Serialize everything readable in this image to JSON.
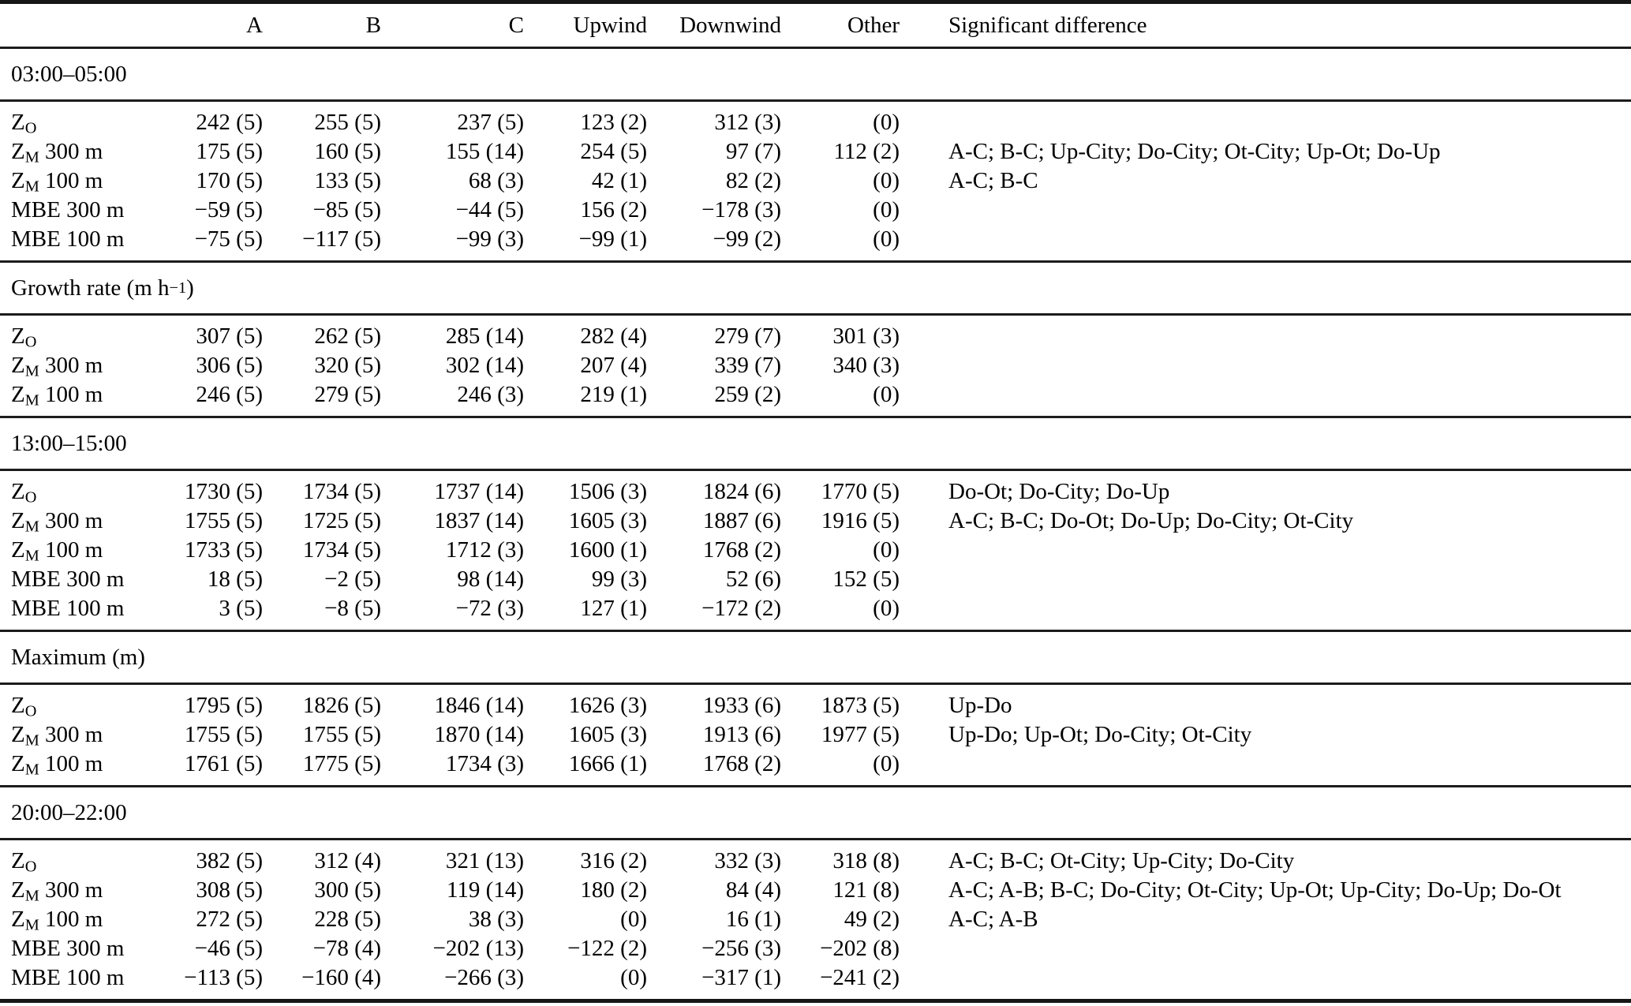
{
  "table": {
    "columns": [
      "",
      "A",
      "B",
      "C",
      "Upwind",
      "Downwind",
      "Other",
      "Significant difference"
    ],
    "sections": [
      {
        "header": {
          "text": "03:00–05:00",
          "sup": "",
          "after": ""
        },
        "rows": [
          {
            "label": {
              "base": "Z",
              "sub": "O",
              "rest": ""
            },
            "values": [
              "242 (5)",
              "255 (5)",
              "237 (5)",
              "123 (2)",
              "312 (3)",
              "(0)"
            ],
            "sig": ""
          },
          {
            "label": {
              "base": "Z",
              "sub": "M",
              "rest": " 300 m"
            },
            "values": [
              "175 (5)",
              "160 (5)",
              "155 (14)",
              "254 (5)",
              "97 (7)",
              "112 (2)"
            ],
            "sig": "A-C; B-C; Up-City; Do-City; Ot-City; Up-Ot; Do-Up"
          },
          {
            "label": {
              "base": "Z",
              "sub": "M",
              "rest": " 100 m"
            },
            "values": [
              "170 (5)",
              "133 (5)",
              "68 (3)",
              "42 (1)",
              "82 (2)",
              "(0)"
            ],
            "sig": "A-C; B-C"
          },
          {
            "label": {
              "base": "MBE",
              "sub": "",
              "rest": " 300 m"
            },
            "values": [
              "−59 (5)",
              "−85 (5)",
              "−44 (5)",
              "156 (2)",
              "−178 (3)",
              "(0)"
            ],
            "sig": ""
          },
          {
            "label": {
              "base": "MBE",
              "sub": "",
              "rest": " 100 m"
            },
            "values": [
              "−75 (5)",
              "−117 (5)",
              "−99 (3)",
              "−99 (1)",
              "−99 (2)",
              "(0)"
            ],
            "sig": ""
          }
        ]
      },
      {
        "header": {
          "text": "Growth rate (m h",
          "sup": "−1",
          "after": ")"
        },
        "rows": [
          {
            "label": {
              "base": "Z",
              "sub": "O",
              "rest": ""
            },
            "values": [
              "307 (5)",
              "262 (5)",
              "285 (14)",
              "282 (4)",
              "279 (7)",
              "301 (3)"
            ],
            "sig": ""
          },
          {
            "label": {
              "base": "Z",
              "sub": "M",
              "rest": " 300 m"
            },
            "values": [
              "306 (5)",
              "320 (5)",
              "302 (14)",
              "207 (4)",
              "339 (7)",
              "340 (3)"
            ],
            "sig": ""
          },
          {
            "label": {
              "base": "Z",
              "sub": "M",
              "rest": " 100 m"
            },
            "values": [
              "246 (5)",
              "279 (5)",
              "246 (3)",
              "219 (1)",
              "259 (2)",
              "(0)"
            ],
            "sig": ""
          }
        ]
      },
      {
        "header": {
          "text": "13:00–15:00",
          "sup": "",
          "after": ""
        },
        "rows": [
          {
            "label": {
              "base": "Z",
              "sub": "O",
              "rest": ""
            },
            "values": [
              "1730 (5)",
              "1734 (5)",
              "1737 (14)",
              "1506 (3)",
              "1824 (6)",
              "1770 (5)"
            ],
            "sig": "Do-Ot; Do-City; Do-Up"
          },
          {
            "label": {
              "base": "Z",
              "sub": "M",
              "rest": " 300 m"
            },
            "values": [
              "1755 (5)",
              "1725 (5)",
              "1837 (14)",
              "1605 (3)",
              "1887 (6)",
              "1916 (5)"
            ],
            "sig": "A-C; B-C; Do-Ot; Do-Up; Do-City; Ot-City"
          },
          {
            "label": {
              "base": "Z",
              "sub": "M",
              "rest": " 100 m"
            },
            "values": [
              "1733 (5)",
              "1734 (5)",
              "1712 (3)",
              "1600 (1)",
              "1768 (2)",
              "(0)"
            ],
            "sig": ""
          },
          {
            "label": {
              "base": "MBE",
              "sub": "",
              "rest": " 300 m"
            },
            "values": [
              "18 (5)",
              "−2 (5)",
              "98 (14)",
              "99 (3)",
              "52 (6)",
              "152 (5)"
            ],
            "sig": ""
          },
          {
            "label": {
              "base": "MBE",
              "sub": "",
              "rest": " 100 m"
            },
            "values": [
              "3 (5)",
              "−8 (5)",
              "−72 (3)",
              "127 (1)",
              "−172 (2)",
              "(0)"
            ],
            "sig": ""
          }
        ]
      },
      {
        "header": {
          "text": "Maximum (m)",
          "sup": "",
          "after": ""
        },
        "rows": [
          {
            "label": {
              "base": "Z",
              "sub": "O",
              "rest": ""
            },
            "values": [
              "1795 (5)",
              "1826 (5)",
              "1846 (14)",
              "1626 (3)",
              "1933 (6)",
              "1873 (5)"
            ],
            "sig": "Up-Do"
          },
          {
            "label": {
              "base": "Z",
              "sub": "M",
              "rest": " 300 m"
            },
            "values": [
              "1755 (5)",
              "1755 (5)",
              "1870 (14)",
              "1605 (3)",
              "1913 (6)",
              "1977 (5)"
            ],
            "sig": "Up-Do; Up-Ot; Do-City; Ot-City"
          },
          {
            "label": {
              "base": "Z",
              "sub": "M",
              "rest": " 100 m"
            },
            "values": [
              "1761 (5)",
              "1775 (5)",
              "1734 (3)",
              "1666 (1)",
              "1768 (2)",
              "(0)"
            ],
            "sig": ""
          }
        ]
      },
      {
        "header": {
          "text": "20:00–22:00",
          "sup": "",
          "after": ""
        },
        "rows": [
          {
            "label": {
              "base": "Z",
              "sub": "O",
              "rest": ""
            },
            "values": [
              "382 (5)",
              "312 (4)",
              "321 (13)",
              "316 (2)",
              "332 (3)",
              "318 (8)"
            ],
            "sig": "A-C; B-C; Ot-City; Up-City; Do-City"
          },
          {
            "label": {
              "base": "Z",
              "sub": "M",
              "rest": " 300 m"
            },
            "values": [
              "308 (5)",
              "300 (5)",
              "119 (14)",
              "180 (2)",
              "84 (4)",
              "121 (8)"
            ],
            "sig": "A-C; A-B; B-C; Do-City; Ot-City; Up-Ot; Up-City; Do-Up; Do-Ot"
          },
          {
            "label": {
              "base": "Z",
              "sub": "M",
              "rest": " 100 m"
            },
            "values": [
              "272 (5)",
              "228 (5)",
              "38 (3)",
              "(0)",
              "16 (1)",
              "49 (2)"
            ],
            "sig": "A-C; A-B"
          },
          {
            "label": {
              "base": "MBE",
              "sub": "",
              "rest": " 300 m"
            },
            "values": [
              "−46 (5)",
              "−78 (4)",
              "−202 (13)",
              "−122 (2)",
              "−256 (3)",
              "−202 (8)"
            ],
            "sig": ""
          },
          {
            "label": {
              "base": "MBE",
              "sub": "",
              "rest": " 100 m"
            },
            "values": [
              "−113 (5)",
              "−160 (4)",
              "−266 (3)",
              "(0)",
              "−317 (1)",
              "−241 (2)"
            ],
            "sig": ""
          }
        ]
      }
    ]
  }
}
